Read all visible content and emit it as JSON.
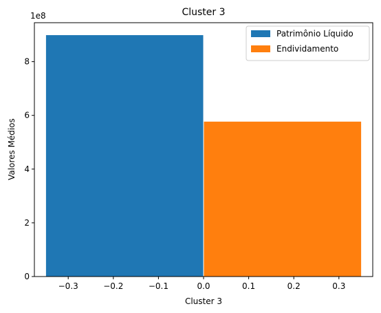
{
  "chart_data": {
    "type": "bar",
    "title": "Cluster 3",
    "xlabel": "Cluster 3",
    "ylabel": "Valores Médios",
    "y_offset_label": "1e8",
    "xlim": [
      -0.375,
      0.375
    ],
    "ylim": [
      0,
      9.45
    ],
    "y_scale_note": "values in units of 1e8",
    "x_ticks": [
      -0.3,
      -0.2,
      -0.1,
      0.0,
      0.1,
      0.2,
      0.3
    ],
    "x_tick_labels": [
      "−0.3",
      "−0.2",
      "−0.1",
      "0.0",
      "0.1",
      "0.2",
      "0.3"
    ],
    "y_ticks": [
      0,
      2,
      4,
      6,
      8
    ],
    "y_tick_labels": [
      "0",
      "2",
      "4",
      "6",
      "8"
    ],
    "series": [
      {
        "name": "Patrimônio Líquido",
        "x_start": -0.35,
        "x_end": 0.0,
        "value": 9.0,
        "color": "#1f77b4"
      },
      {
        "name": "Endividamento",
        "x_start": 0.0,
        "x_end": 0.35,
        "value": 5.78,
        "color": "#ff7f0e"
      }
    ],
    "legend_position": "top-right",
    "grid": false
  }
}
